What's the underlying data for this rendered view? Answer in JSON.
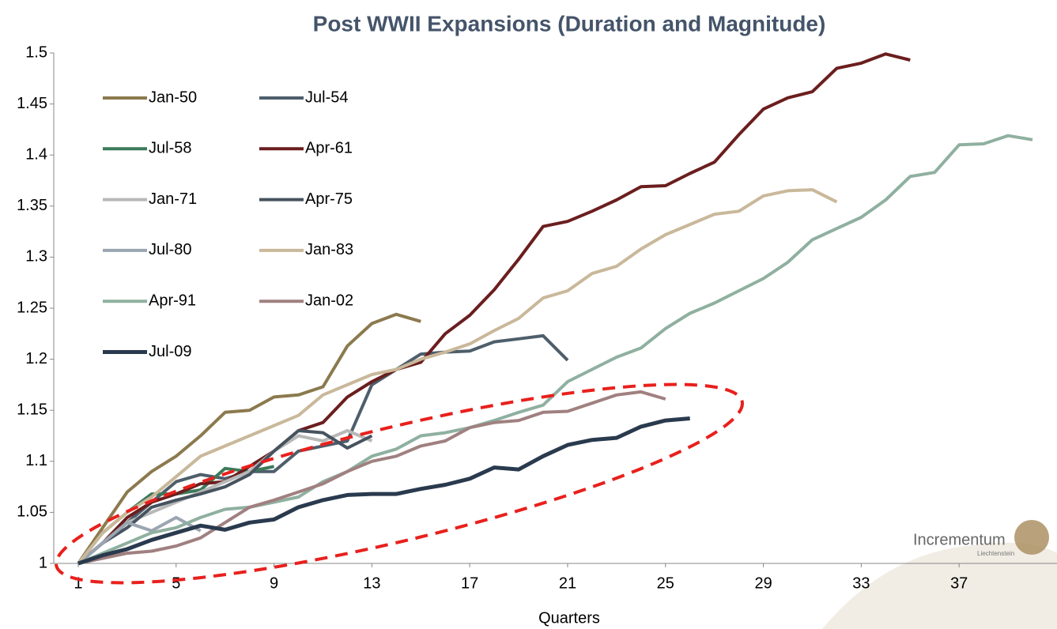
{
  "chart_data": {
    "type": "line",
    "title": "Post WWII Expansions (Duration and Magnitude)",
    "x_label": "Quarters",
    "x": [
      1,
      2,
      3,
      4,
      5,
      6,
      7,
      8,
      9,
      10,
      11,
      12,
      13,
      14,
      15,
      16,
      17,
      18,
      19,
      20,
      21,
      22,
      23,
      24,
      25,
      26,
      27,
      28,
      29,
      30,
      31,
      32,
      33,
      34,
      35,
      36,
      37,
      38,
      39,
      40
    ],
    "xlim": [
      0,
      41
    ],
    "xticks": [
      1,
      5,
      9,
      13,
      17,
      21,
      25,
      29,
      33,
      37
    ],
    "ylim": [
      1,
      1.5
    ],
    "yticks": [
      1,
      1.05,
      1.1,
      1.15,
      1.2,
      1.25,
      1.3,
      1.35,
      1.4,
      1.45,
      1.5
    ],
    "grid": false,
    "legend": "upper left",
    "logo": {
      "name": "Incrementum",
      "sub": "Liechtenstein"
    },
    "series": [
      {
        "name": "Jan-50",
        "color": "#8b7a4e",
        "values": [
          1,
          1.035,
          1.07,
          1.09,
          1.105,
          1.125,
          1.148,
          1.15,
          1.163,
          1.165,
          1.173,
          1.213,
          1.235,
          1.244,
          1.237,
          null,
          null,
          null,
          null,
          null,
          null,
          null,
          null,
          null,
          null,
          null,
          null,
          null,
          null,
          null,
          null,
          null,
          null,
          null,
          null,
          null,
          null,
          null,
          null,
          null
        ]
      },
      {
        "name": "Jul-54",
        "color": "#4e5e6b",
        "values": [
          1,
          1.02,
          1.04,
          1.06,
          1.08,
          1.087,
          1.083,
          1.09,
          1.09,
          1.11,
          1.115,
          1.12,
          1.175,
          1.19,
          1.205,
          1.207,
          1.208,
          1.217,
          1.22,
          1.223,
          1.199,
          null,
          null,
          null,
          null,
          null,
          null,
          null,
          null,
          null,
          null,
          null,
          null,
          null,
          null,
          null,
          null,
          null,
          null,
          null
        ]
      },
      {
        "name": "Jul-58",
        "color": "#3c7a5a",
        "values": [
          1,
          1.03,
          1.05,
          1.068,
          1.068,
          1.072,
          1.093,
          1.09,
          1.095,
          null,
          null,
          null,
          null,
          null,
          null,
          null,
          null,
          null,
          null,
          null,
          null,
          null,
          null,
          null,
          null,
          null,
          null,
          null,
          null,
          null,
          null,
          null,
          null,
          null,
          null,
          null,
          null,
          null,
          null,
          null
        ]
      },
      {
        "name": "Apr-61",
        "color": "#6b1e1e",
        "values": [
          1,
          1.02,
          1.045,
          1.06,
          1.068,
          1.078,
          1.08,
          1.095,
          1.11,
          1.13,
          1.138,
          1.163,
          1.178,
          1.19,
          1.197,
          1.225,
          1.243,
          1.268,
          1.298,
          1.33,
          1.335,
          1.345,
          1.356,
          1.369,
          1.37,
          1.382,
          1.393,
          1.42,
          1.445,
          1.456,
          1.462,
          1.485,
          1.49,
          1.499,
          1.493,
          null,
          null,
          null,
          null,
          null
        ]
      },
      {
        "name": "Jan-71",
        "color": "#b8b8b8",
        "values": [
          1,
          1.02,
          1.04,
          1.05,
          1.06,
          1.07,
          1.08,
          1.09,
          1.11,
          1.125,
          1.12,
          1.13,
          1.12,
          null,
          null,
          null,
          null,
          null,
          null,
          null,
          null,
          null,
          null,
          null,
          null,
          null,
          null,
          null,
          null,
          null,
          null,
          null,
          null,
          null,
          null,
          null,
          null,
          null,
          null,
          null
        ]
      },
      {
        "name": "Apr-75",
        "color": "#46535f",
        "values": [
          1,
          1.02,
          1.035,
          1.055,
          1.062,
          1.068,
          1.075,
          1.087,
          1.11,
          1.13,
          1.128,
          1.113,
          1.125,
          null,
          null,
          null,
          null,
          null,
          null,
          null,
          null,
          null,
          null,
          null,
          null,
          null,
          null,
          null,
          null,
          null,
          null,
          null,
          null,
          null,
          null,
          null,
          null,
          null,
          null,
          null
        ]
      },
      {
        "name": "Jul-80",
        "color": "#9aa5b1",
        "values": [
          1,
          1.02,
          1.04,
          1.032,
          1.045,
          1.032,
          null,
          null,
          null,
          null,
          null,
          null,
          null,
          null,
          null,
          null,
          null,
          null,
          null,
          null,
          null,
          null,
          null,
          null,
          null,
          null,
          null,
          null,
          null,
          null,
          null,
          null,
          null,
          null,
          null,
          null,
          null,
          null,
          null,
          null
        ]
      },
      {
        "name": "Jan-83",
        "color": "#c9b89a",
        "values": [
          1,
          1.03,
          1.05,
          1.065,
          1.085,
          1.105,
          1.115,
          1.125,
          1.135,
          1.145,
          1.165,
          1.175,
          1.185,
          1.19,
          1.2,
          1.207,
          1.215,
          1.228,
          1.24,
          1.26,
          1.267,
          1.284,
          1.291,
          1.308,
          1.322,
          1.332,
          1.342,
          1.345,
          1.36,
          1.365,
          1.366,
          1.354,
          null,
          null,
          null,
          null,
          null,
          null,
          null,
          null
        ]
      },
      {
        "name": "Apr-91",
        "color": "#8fb0a0",
        "values": [
          1,
          1.01,
          1.02,
          1.03,
          1.035,
          1.045,
          1.053,
          1.055,
          1.06,
          1.065,
          1.08,
          1.09,
          1.105,
          1.112,
          1.125,
          1.128,
          1.133,
          1.14,
          1.148,
          1.155,
          1.178,
          1.19,
          1.202,
          1.211,
          1.23,
          1.245,
          1.255,
          1.267,
          1.279,
          1.295,
          1.317,
          1.328,
          1.339,
          1.356,
          1.379,
          1.383,
          1.41,
          1.411,
          1.419,
          1.415
        ]
      },
      {
        "name": "Jan-02",
        "color": "#a08080",
        "values": [
          1,
          1.005,
          1.01,
          1.012,
          1.017,
          1.025,
          1.04,
          1.055,
          1.062,
          1.07,
          1.078,
          1.09,
          1.1,
          1.105,
          1.115,
          1.12,
          1.133,
          1.138,
          1.14,
          1.148,
          1.149,
          1.157,
          1.165,
          1.168,
          1.161,
          null,
          null,
          null,
          null,
          null,
          null,
          null,
          null,
          null,
          null,
          null,
          null,
          null,
          null,
          null
        ]
      },
      {
        "name": "Jul-09",
        "color": "#2a3a4e",
        "values": [
          1,
          1.008,
          1.014,
          1.023,
          1.03,
          1.037,
          1.033,
          1.04,
          1.043,
          1.055,
          1.062,
          1.067,
          1.068,
          1.068,
          1.073,
          1.077,
          1.083,
          1.094,
          1.092,
          1.105,
          1.116,
          1.121,
          1.123,
          1.134,
          1.14,
          1.142,
          null,
          null,
          null,
          null,
          null,
          null,
          null,
          null,
          null,
          null,
          null,
          null,
          null,
          null
        ]
      }
    ]
  }
}
